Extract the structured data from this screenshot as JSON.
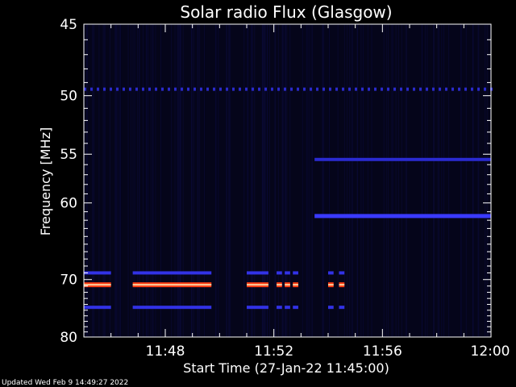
{
  "chart_data": {
    "type": "heatmap",
    "title": "Solar radio Flux (Glasgow)",
    "ylabel": "Frequency [MHz]",
    "xlabel": "Start Time (27-Jan-22 11:45:00)",
    "footer": "Updated Wed Feb  9 14:49:27 2022",
    "x_range_minutes": [
      0,
      15
    ],
    "x_ticks": [
      {
        "label": "11:48",
        "minute": 3
      },
      {
        "label": "11:52",
        "minute": 7
      },
      {
        "label": "11:56",
        "minute": 11
      },
      {
        "label": "12:00",
        "minute": 15
      }
    ],
    "y_range_mhz": [
      45,
      80
    ],
    "y_ticks": [
      {
        "label": "45",
        "mhz": 45
      },
      {
        "label": "50",
        "mhz": 50
      },
      {
        "label": "55",
        "mhz": 55
      },
      {
        "label": "60",
        "mhz": 60
      },
      {
        "label": "70",
        "mhz": 70
      },
      {
        "label": "80",
        "mhz": 80
      }
    ],
    "emission_bands": [
      {
        "mhz": 70.8,
        "intensity": "high",
        "color": "#ff3a10",
        "segments": [
          [
            0.0,
            1.0
          ],
          [
            1.8,
            4.7
          ],
          [
            6.0,
            6.8
          ],
          [
            7.1,
            7.3
          ],
          [
            7.4,
            7.6
          ],
          [
            7.7,
            7.9
          ],
          [
            9.0,
            9.2
          ],
          [
            9.4,
            9.6
          ]
        ]
      },
      {
        "mhz": 69.0,
        "intensity": "low",
        "color": "#3232e6",
        "segments": [
          [
            0.0,
            1.0
          ],
          [
            1.8,
            4.7
          ],
          [
            6.0,
            6.8
          ],
          [
            7.1,
            7.3
          ],
          [
            7.4,
            7.6
          ],
          [
            7.7,
            7.9
          ],
          [
            9.0,
            9.2
          ],
          [
            9.4,
            9.6
          ]
        ]
      },
      {
        "mhz": 74.5,
        "intensity": "low",
        "color": "#3232e6",
        "segments": [
          [
            0.0,
            1.0
          ],
          [
            1.8,
            4.7
          ],
          [
            6.0,
            6.8
          ],
          [
            7.1,
            7.3
          ],
          [
            7.4,
            7.6
          ],
          [
            7.7,
            7.9
          ],
          [
            9.0,
            9.2
          ],
          [
            9.4,
            9.6
          ]
        ]
      },
      {
        "mhz": 55.5,
        "intensity": "low",
        "color": "#2a2ad0",
        "segments": [
          [
            8.5,
            15.0
          ]
        ]
      },
      {
        "mhz": 61.5,
        "intensity": "medium",
        "color": "#3a3aff",
        "segments": [
          [
            8.5,
            15.0
          ]
        ]
      },
      {
        "mhz": 49.5,
        "intensity": "low",
        "color": "#2a2acc",
        "segments": [
          [
            0.0,
            15.0
          ]
        ],
        "dashed": true
      }
    ],
    "colors": {
      "background": "#000000",
      "plot_background": "#05051a",
      "axis": "#ffffff",
      "hot_core": "#ffd0a0"
    }
  }
}
